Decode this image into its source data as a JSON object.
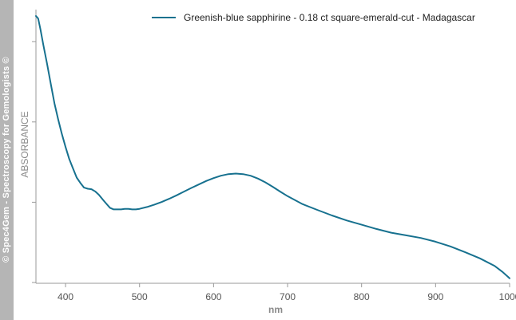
{
  "watermark": "© Spec4Gem - Spectroscopy for Gemologists ©",
  "chart_data": {
    "type": "line",
    "xlabel": "nm",
    "ylabel": "ABSORBANCE",
    "xlim": [
      360,
      1000
    ],
    "ylim": [
      0,
      1
    ],
    "x_ticks": [
      400,
      500,
      600,
      700,
      800,
      900,
      1000
    ],
    "x_tick_labels": [
      "400",
      "500",
      "600",
      "700",
      "800",
      "900",
      "1000"
    ],
    "y_tick_labels_shown": false,
    "grid": false,
    "legend_position": "top-right",
    "colors": {
      "series": "#17718f",
      "axis": "#999999"
    },
    "series": [
      {
        "name": "Greenish-blue sapphirine - 0.18 ct square-emerald-cut - Madagascar",
        "x": [
          360,
          363,
          366,
          370,
          375,
          380,
          385,
          390,
          395,
          400,
          405,
          410,
          415,
          420,
          425,
          430,
          435,
          440,
          445,
          450,
          455,
          460,
          465,
          470,
          475,
          480,
          485,
          490,
          495,
          500,
          510,
          520,
          530,
          540,
          550,
          560,
          570,
          580,
          590,
          600,
          610,
          620,
          630,
          640,
          650,
          660,
          670,
          680,
          690,
          700,
          710,
          720,
          740,
          760,
          780,
          800,
          820,
          840,
          860,
          880,
          900,
          920,
          940,
          960,
          980,
          990,
          1000
        ],
        "y": [
          1.0,
          0.99,
          0.95,
          0.89,
          0.82,
          0.745,
          0.67,
          0.61,
          0.555,
          0.505,
          0.46,
          0.425,
          0.39,
          0.37,
          0.352,
          0.348,
          0.346,
          0.338,
          0.325,
          0.308,
          0.292,
          0.276,
          0.27,
          0.27,
          0.27,
          0.272,
          0.272,
          0.27,
          0.27,
          0.272,
          0.279,
          0.288,
          0.298,
          0.31,
          0.323,
          0.337,
          0.351,
          0.364,
          0.377,
          0.388,
          0.397,
          0.403,
          0.405,
          0.403,
          0.397,
          0.386,
          0.372,
          0.355,
          0.337,
          0.32,
          0.305,
          0.29,
          0.268,
          0.247,
          0.228,
          0.212,
          0.196,
          0.182,
          0.172,
          0.162,
          0.148,
          0.13,
          0.108,
          0.085,
          0.056,
          0.035,
          0.01
        ]
      }
    ]
  }
}
